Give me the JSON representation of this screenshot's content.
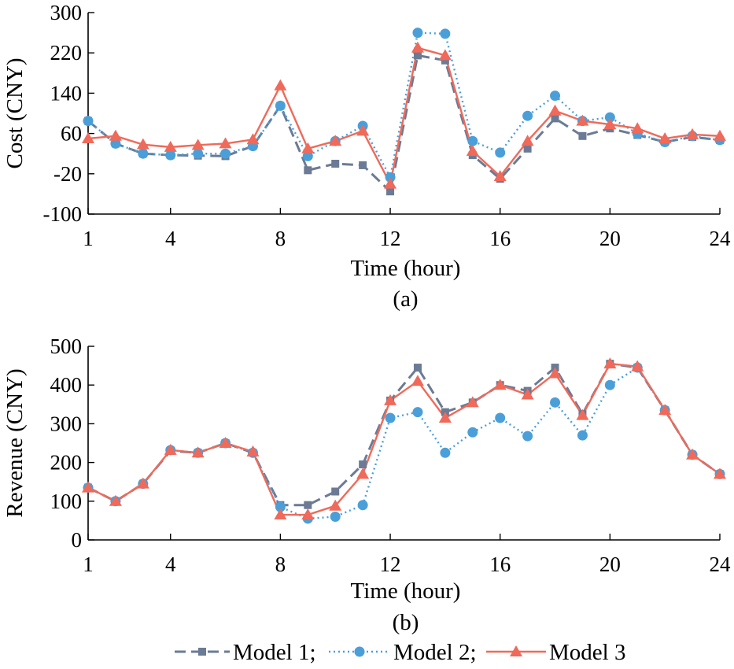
{
  "legend": [
    {
      "label": "Model 1;",
      "series": "m1"
    },
    {
      "label": "Model 2;",
      "series": "m2"
    },
    {
      "label": "Model 3",
      "series": "m3"
    }
  ],
  "styles": {
    "m1": {
      "color": "#6b7b95",
      "dash": "14,7",
      "marker": "square"
    },
    "m2": {
      "color": "#4b9fd9",
      "dash": "2,4",
      "marker": "circle"
    },
    "m3": {
      "color": "#ef6a5a",
      "dash": "",
      "marker": "triangle"
    }
  },
  "chart_data": [
    {
      "type": "line",
      "panel_label": "(a)",
      "xlabel": "Time (hour)",
      "ylabel": "Cost (CNY)",
      "xlim": [
        1,
        24
      ],
      "ylim": [
        -100,
        300
      ],
      "xticks": [
        1,
        4,
        8,
        12,
        16,
        20,
        24
      ],
      "yticks": [
        -100,
        -20,
        60,
        140,
        220,
        300
      ],
      "x": [
        1,
        2,
        3,
        4,
        5,
        6,
        7,
        8,
        9,
        10,
        11,
        12,
        13,
        14,
        15,
        16,
        17,
        18,
        19,
        20,
        21,
        22,
        23,
        24
      ],
      "series": [
        {
          "id": "m1",
          "name": "Model 1",
          "values": [
            85,
            40,
            20,
            17,
            16,
            15,
            35,
            115,
            -13,
            0,
            -3,
            -55,
            215,
            205,
            17,
            -30,
            30,
            90,
            55,
            70,
            57,
            43,
            53,
            47
          ]
        },
        {
          "id": "m2",
          "name": "Model 2",
          "values": [
            85,
            40,
            20,
            17,
            20,
            20,
            35,
            115,
            15,
            45,
            75,
            -27,
            260,
            258,
            45,
            22,
            95,
            135,
            85,
            92,
            60,
            43,
            55,
            47
          ]
        },
        {
          "id": "m3",
          "name": "Model 3",
          "values": [
            50,
            55,
            38,
            33,
            37,
            40,
            48,
            155,
            30,
            45,
            65,
            -40,
            230,
            215,
            25,
            -25,
            45,
            105,
            85,
            78,
            70,
            50,
            58,
            55
          ]
        }
      ]
    },
    {
      "type": "line",
      "panel_label": "(b)",
      "xlabel": "Time (hour)",
      "ylabel": "Revenue (CNY)",
      "xlim": [
        1,
        24
      ],
      "ylim": [
        0,
        500
      ],
      "xticks": [
        1,
        4,
        8,
        12,
        16,
        20,
        24
      ],
      "yticks": [
        0,
        100,
        200,
        300,
        400,
        500
      ],
      "x": [
        1,
        2,
        3,
        4,
        5,
        6,
        7,
        8,
        9,
        10,
        11,
        12,
        13,
        14,
        15,
        16,
        17,
        18,
        19,
        20,
        21,
        22,
        23,
        24
      ],
      "series": [
        {
          "id": "m1",
          "name": "Model 1",
          "values": [
            135,
            100,
            145,
            230,
            225,
            250,
            225,
            90,
            90,
            125,
            195,
            360,
            445,
            330,
            355,
            400,
            385,
            445,
            325,
            455,
            445,
            335,
            220,
            170
          ]
        },
        {
          "id": "m2",
          "name": "Model 2",
          "values": [
            135,
            100,
            145,
            232,
            225,
            250,
            225,
            85,
            55,
            60,
            90,
            315,
            330,
            225,
            278,
            315,
            268,
            355,
            270,
            400,
            445,
            335,
            220,
            170
          ]
        },
        {
          "id": "m3",
          "name": "Model 3",
          "values": [
            135,
            100,
            145,
            232,
            225,
            250,
            228,
            65,
            65,
            88,
            170,
            360,
            410,
            315,
            355,
            400,
            375,
            430,
            322,
            455,
            448,
            335,
            220,
            170
          ]
        }
      ]
    }
  ]
}
